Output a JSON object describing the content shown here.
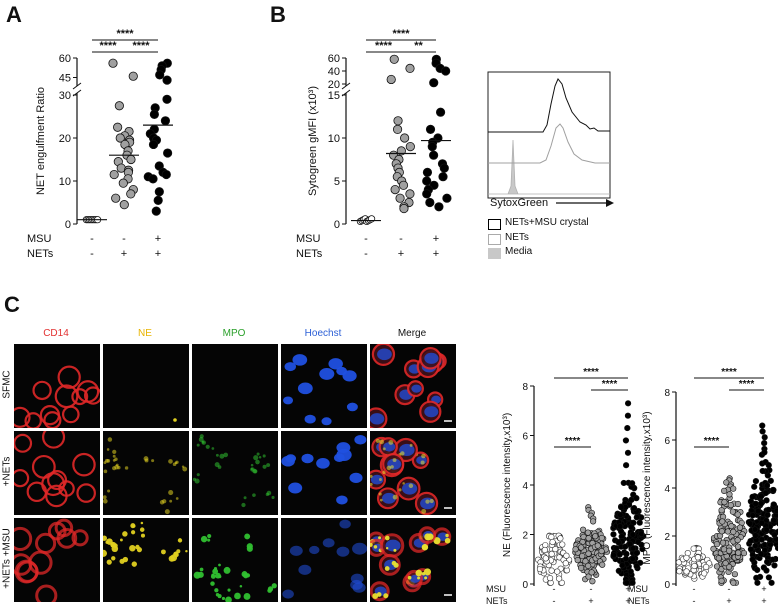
{
  "panels": {
    "a": "A",
    "b": "B",
    "c": "C"
  },
  "sig": "****",
  "sig_b2": "**",
  "row_labels": {
    "msu": "MSU",
    "nets": "NETs",
    "minus": "-",
    "plus": "+"
  },
  "chart_data": [
    {
      "id": "A",
      "type": "scatter",
      "ylabel": "NET engulfment Ratio",
      "yticks_lower": [
        "0",
        "10",
        "20",
        "30"
      ],
      "yticks_upper": [
        "45",
        "60"
      ],
      "ylim_lower": [
        0,
        30
      ],
      "ylim_upper": [
        40,
        60
      ],
      "groups": [
        {
          "msu": "-",
          "nets": "-",
          "mean": 1.0,
          "color": "#ffffff",
          "values": [
            1.0,
            1.0,
            1.0,
            1.0,
            1.0,
            1.0,
            1.0,
            1.0
          ]
        },
        {
          "msu": "-",
          "nets": "+",
          "mean": 16.0,
          "color": "#a0a0a0",
          "values": [
            56,
            46,
            27.5,
            22.5,
            21.5,
            20.5,
            20,
            19.5,
            19,
            18.5,
            17,
            16,
            15,
            14.5,
            13,
            12.5,
            12,
            11.5,
            10.5,
            9.5,
            8,
            7,
            6,
            4.5
          ]
        },
        {
          "msu": "+",
          "nets": "+",
          "mean": 23.0,
          "color": "#000000",
          "values": [
            56,
            54,
            51,
            47,
            43,
            29,
            27,
            25.5,
            24,
            22,
            21,
            20,
            19.5,
            18.5,
            16.5,
            13.5,
            12,
            11.5,
            11,
            10.5,
            7.5,
            5.5,
            3
          ]
        }
      ],
      "comparisons": [
        {
          "from": 0,
          "to": 1,
          "label": "****"
        },
        {
          "from": 1,
          "to": 2,
          "label": "****"
        },
        {
          "from": 0,
          "to": 2,
          "label": "****"
        }
      ]
    },
    {
      "id": "B",
      "type": "scatter",
      "ylabel": "Sytogreen gMFI (x10³)",
      "yticks_lower": [
        "0",
        "5",
        "10",
        "15"
      ],
      "yticks_upper": [
        "20",
        "40",
        "60"
      ],
      "ylim_lower": [
        0,
        15
      ],
      "ylim_upper": [
        20,
        60
      ],
      "groups": [
        {
          "msu": "-",
          "nets": "-",
          "mean": 0.4,
          "color": "#ffffff",
          "values": [
            0.3,
            0.4,
            0.5,
            0.6,
            0.3,
            0.4,
            0.5,
            0.6
          ]
        },
        {
          "msu": "-",
          "nets": "+",
          "mean": 8.2,
          "color": "#a0a0a0",
          "values": [
            58,
            44,
            27,
            12,
            11,
            10,
            9,
            8.5,
            8,
            7.5,
            7,
            6.5,
            6,
            5.5,
            5,
            4.5,
            4,
            3.5,
            3,
            2.5,
            2,
            1.8
          ]
        },
        {
          "msu": "+",
          "nets": "+",
          "mean": 9.7,
          "color": "#000000",
          "values": [
            58,
            52,
            44,
            40,
            22,
            13,
            11,
            10,
            9.5,
            9,
            8,
            7,
            6.5,
            6,
            5.5,
            5,
            4.5,
            4,
            3.5,
            3,
            2.5,
            2
          ]
        }
      ],
      "comparisons": [
        {
          "from": 0,
          "to": 1,
          "label": "****"
        },
        {
          "from": 1,
          "to": 2,
          "label": "**"
        },
        {
          "from": 0,
          "to": 2,
          "label": "****"
        }
      ]
    },
    {
      "id": "histogram",
      "type": "area",
      "xlabel": "SytoxGreen",
      "series": [
        {
          "name": "NETs+MSU crystal",
          "color": "#000000"
        },
        {
          "name": "NETs",
          "color": "#a0a0a0"
        },
        {
          "name": "Media",
          "color": "#c8c8c8"
        }
      ]
    },
    {
      "id": "NE",
      "type": "scatter",
      "ylabel": "NE (Fluorescence intensity,x10³)",
      "yticks": [
        "0",
        "2",
        "4",
        "6",
        "8"
      ],
      "ylim": [
        0,
        8
      ],
      "groups": [
        {
          "msu": "-",
          "nets": "-",
          "center": 0.9,
          "spread": 1.0,
          "top": 1.95,
          "color": "#ffffff",
          "n": 80
        },
        {
          "msu": "-",
          "nets": "+",
          "center": 1.3,
          "spread": 1.0,
          "top": 3.1,
          "color": "#a0a0a0",
          "n": 120
        },
        {
          "msu": "+",
          "nets": "+",
          "center": 1.8,
          "spread": 2.0,
          "top": 7.3,
          "color": "#000000",
          "n": 160
        }
      ],
      "comparisons": [
        {
          "from": 0,
          "to": 1,
          "label": "****"
        },
        {
          "from": 1,
          "to": 2,
          "label": "****"
        },
        {
          "from": 0,
          "to": 2,
          "label": "****"
        }
      ]
    },
    {
      "id": "MPO",
      "type": "scatter",
      "ylabel": "MPO (Fluorescence intensity,x10³)",
      "yticks": [
        "0",
        "2",
        "4",
        "6",
        "8"
      ],
      "ylim": [
        0,
        8
      ],
      "groups": [
        {
          "msu": "-",
          "nets": "-",
          "center": 0.75,
          "spread": 0.7,
          "top": 1.5,
          "color": "#ffffff",
          "n": 60
        },
        {
          "msu": "-",
          "nets": "+",
          "center": 1.8,
          "spread": 2.0,
          "top": 4.4,
          "color": "#a0a0a0",
          "n": 150
        },
        {
          "msu": "+",
          "nets": "+",
          "center": 2.4,
          "spread": 2.5,
          "top": 6.6,
          "color": "#000000",
          "n": 170
        }
      ],
      "comparisons": [
        {
          "from": 0,
          "to": 1,
          "label": "****"
        },
        {
          "from": 1,
          "to": 2,
          "label": "****"
        },
        {
          "from": 0,
          "to": 2,
          "label": "****"
        }
      ]
    }
  ],
  "microscopy": {
    "columns": [
      {
        "label": "CD14",
        "color": "#e23030"
      },
      {
        "label": "NE",
        "color": "#e8b400"
      },
      {
        "label": "MPO",
        "color": "#2aa02a"
      },
      {
        "label": "Hoechst",
        "color": "#2b5fd6"
      },
      {
        "label": "Merge",
        "color": "#111111"
      }
    ],
    "rows": [
      "SFMC",
      "+NETs",
      "+NETs +MSU"
    ]
  }
}
